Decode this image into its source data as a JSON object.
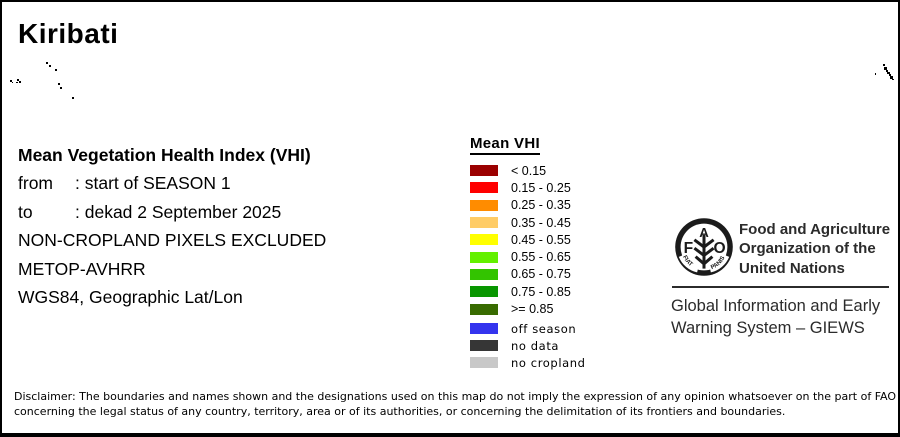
{
  "title": "Kiribati",
  "info": {
    "heading": "Mean Vegetation Health Index (VHI)",
    "from_label": "from",
    "from_value": ": start of SEASON 1",
    "to_label": "to",
    "to_value": ": dekad 2 September 2025",
    "line_noncropland": "NON-CROPLAND PIXELS EXCLUDED",
    "line_sensor": "METOP-AVHRR",
    "line_projection": "WGS84, Geographic Lat/Lon"
  },
  "legend": {
    "title": "Mean VHI",
    "classes": [
      {
        "label": "< 0.15",
        "color": "#9B0000"
      },
      {
        "label": "0.15 - 0.25",
        "color": "#FF0000"
      },
      {
        "label": "0.25 - 0.35",
        "color": "#FF8C00"
      },
      {
        "label": "0.35 - 0.45",
        "color": "#FFCC66"
      },
      {
        "label": "0.45 - 0.55",
        "color": "#FFFF00"
      },
      {
        "label": "0.55 - 0.65",
        "color": "#63F000"
      },
      {
        "label": "0.65 - 0.75",
        "color": "#33C400"
      },
      {
        "label": "0.75 - 0.85",
        "color": "#089600"
      },
      {
        "label": ">= 0.85",
        "color": "#386B00"
      }
    ],
    "extra": [
      {
        "label": "off season",
        "color": "#3434EE"
      },
      {
        "label": "no data",
        "color": "#363636"
      },
      {
        "label": "no cropland",
        "color": "#C8C8C8"
      }
    ]
  },
  "org": {
    "fao_line1": "Food and Agriculture",
    "fao_line2": "Organization of the",
    "fao_line3": "United Nations",
    "giews_line1": "Global Information and Early",
    "giews_line2": "Warning System – GIEWS",
    "logo": {
      "f": "F",
      "a": "A",
      "o": "O",
      "motto_left": "FIAT",
      "motto_right": "PANIS"
    }
  },
  "disclaimer": {
    "line1": "Disclaimer: The boundaries and names shown and the designations used on this map do not imply the expression of any opinion whatsoever on the part of FAO",
    "line2": "concerning the legal status of any country, territory, area or of its authorities, or concerning the delimitation of its frontiers and boundaries."
  },
  "map": {
    "islands": [
      [
        44,
        60,
        2,
        2
      ],
      [
        47,
        63,
        2,
        2
      ],
      [
        53,
        67,
        2,
        2
      ],
      [
        8,
        78,
        2,
        2
      ],
      [
        10,
        80,
        1,
        1
      ],
      [
        15,
        77,
        2,
        2
      ],
      [
        17,
        79,
        2,
        2
      ],
      [
        14,
        80,
        2,
        1
      ],
      [
        56,
        81,
        2,
        2
      ],
      [
        58,
        85,
        2,
        2
      ],
      [
        70,
        95,
        2,
        2
      ],
      [
        873,
        71,
        1,
        2
      ],
      [
        881,
        62,
        2,
        2
      ],
      [
        882,
        65,
        3,
        3
      ],
      [
        884,
        68,
        2,
        2
      ],
      [
        885,
        70,
        3,
        2
      ],
      [
        887,
        72,
        2,
        2
      ],
      [
        888,
        74,
        3,
        3
      ],
      [
        890,
        77,
        2,
        1
      ]
    ]
  }
}
